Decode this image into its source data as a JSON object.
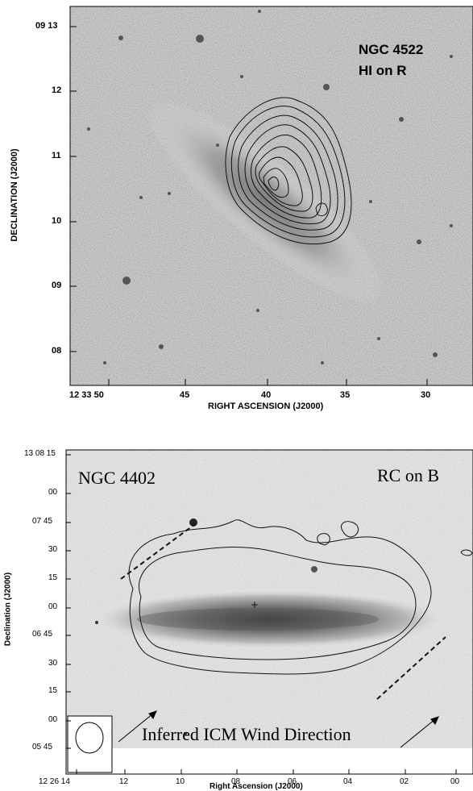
{
  "figure_top": {
    "title_line1": "NGC 4522",
    "title_line2": "HI on R",
    "xlabel": "RIGHT ASCENSION (J2000)",
    "ylabel": "DECLINATION (J2000)",
    "xticks": [
      "12 33 50",
      "45",
      "40",
      "35",
      "30"
    ],
    "yticks": [
      "09 13",
      "12",
      "11",
      "10",
      "09",
      "08"
    ]
  },
  "figure_bottom": {
    "title_left": "NGC 4402",
    "title_right": "RC on B",
    "xlabel": "Right Ascension (J2000)",
    "ylabel": "Declination (J2000)",
    "annotation": "Inferred ICM Wind Direction",
    "xticks": [
      "12 26 14",
      "12",
      "10",
      "08",
      "06",
      "04",
      "02",
      "00"
    ],
    "yticks": [
      "13 08 15",
      "00",
      "07 45",
      "30",
      "15",
      "00",
      "06 45",
      "30",
      "15",
      "00",
      "05 45"
    ]
  }
}
